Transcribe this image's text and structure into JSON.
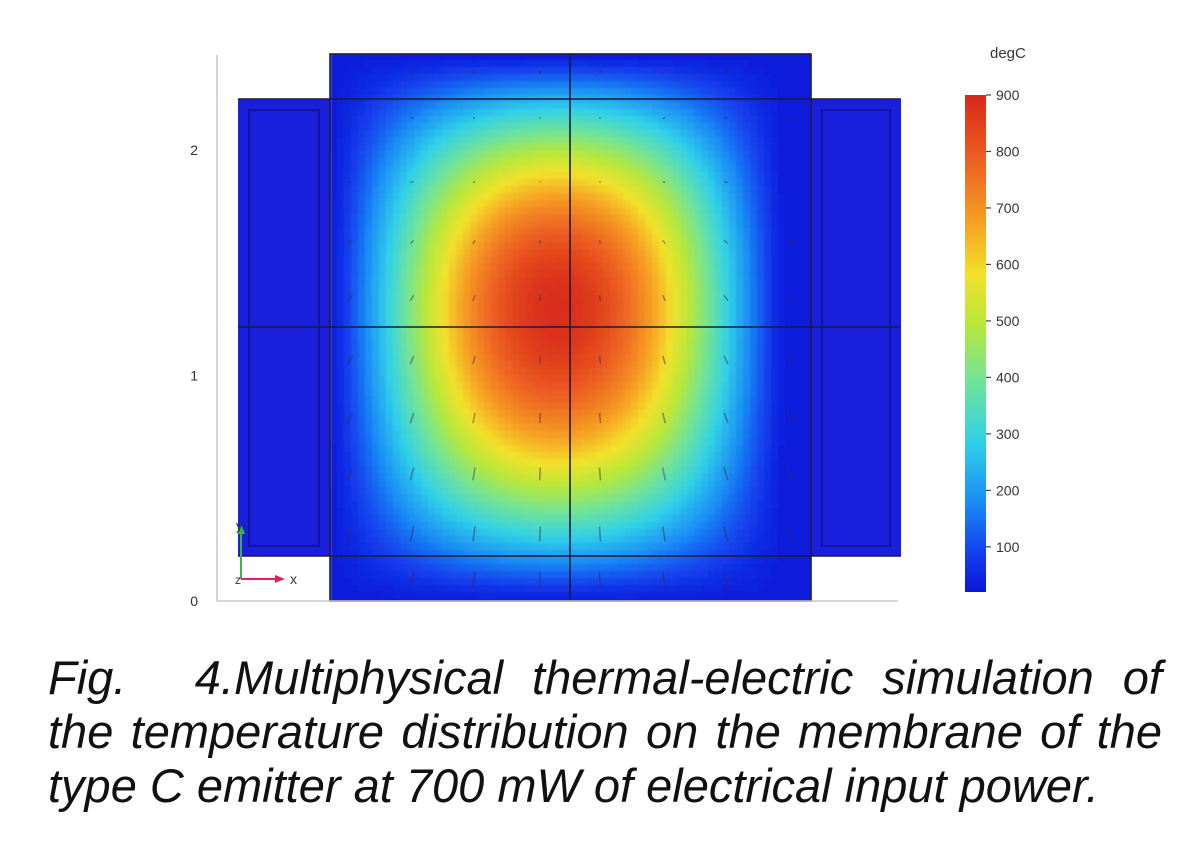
{
  "chart_data": {
    "type": "heatmap",
    "title": "",
    "xlabel": "",
    "ylabel": "",
    "colorbar": {
      "title": "degC",
      "min": 20,
      "max": 900,
      "ticks": [
        100,
        200,
        300,
        400,
        500,
        600,
        700,
        800,
        900
      ],
      "colormap": "rainbow"
    },
    "y_axis": {
      "range": [
        0,
        2.42
      ],
      "ticks": [
        0,
        1,
        2
      ]
    },
    "x_axis": {
      "range": [
        -1.55,
        1.55
      ],
      "ticks": []
    },
    "axis_triad": {
      "x_label": "x",
      "y_label": "y",
      "z_label": "z"
    },
    "field": {
      "peak_temperature": 890,
      "peak_center": [
        0,
        1.3
      ],
      "edge_temperature": 30,
      "ambient_temperature": 25,
      "description_colors": {
        "hot": "#e8461e",
        "cold": "#1a22e0"
      }
    }
  },
  "caption": {
    "label": "Fig. 4.",
    "line1": "Multiphysical thermal-electric simulation of",
    "line2": "the temperature distribution on the membrane of the",
    "line3": "type C emitter at 700 mW of electrical input power."
  }
}
